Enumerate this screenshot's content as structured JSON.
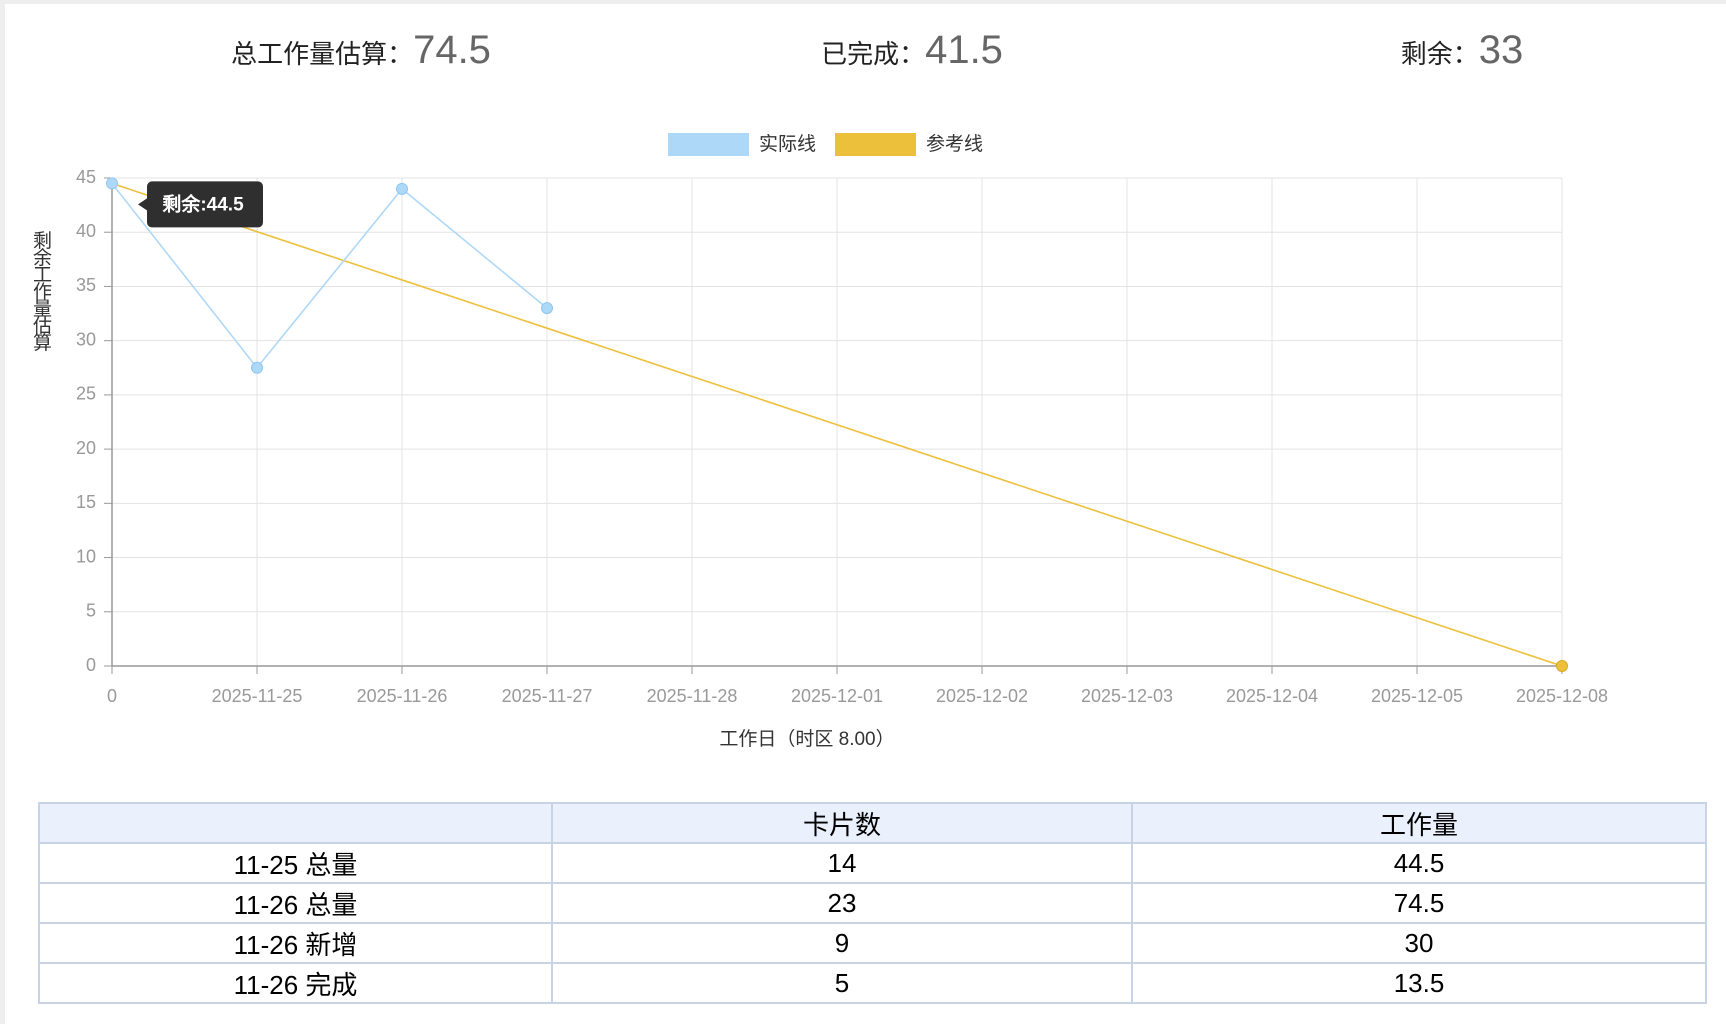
{
  "summary": [
    {
      "label": "总工作量估算：",
      "value": 74.5
    },
    {
      "label": "已完成：",
      "value": 41.5
    },
    {
      "label": "剩余：",
      "value": 33
    }
  ],
  "chart_data": {
    "type": "line",
    "categories": [
      "0",
      "2025-11-25",
      "2025-11-26",
      "2025-11-27",
      "2025-11-28",
      "2025-12-01",
      "2025-12-02",
      "2025-12-03",
      "2025-12-04",
      "2025-12-05",
      "2025-12-08"
    ],
    "series": [
      {
        "name": "实际线",
        "color": "#aed8f7",
        "values": [
          44.5,
          27.5,
          44,
          33,
          null,
          null,
          null,
          null,
          null,
          null,
          null
        ]
      },
      {
        "name": "参考线",
        "color": "#edc03c",
        "values": [
          44.5,
          40.05,
          35.6,
          31.15,
          26.7,
          22.25,
          17.8,
          13.35,
          8.9,
          4.45,
          0
        ]
      }
    ],
    "ylim": [
      0,
      45
    ],
    "yticks": [
      0,
      5,
      10,
      15,
      20,
      25,
      30,
      35,
      40,
      45
    ],
    "y_label": "剩余工作量估算",
    "x_label": "工作日（时区 8.00）",
    "tooltip": "剩余:44.5",
    "grid": true,
    "legend": "top"
  },
  "table": {
    "columns": [
      "卡片数",
      "工作量"
    ],
    "rows": [
      [
        "11-25 总量",
        14,
        44.5
      ],
      [
        "11-26 总量",
        23,
        74.5
      ],
      [
        "11-26 新增",
        9,
        30
      ],
      [
        "11-26 完成",
        5,
        13.5
      ]
    ]
  }
}
